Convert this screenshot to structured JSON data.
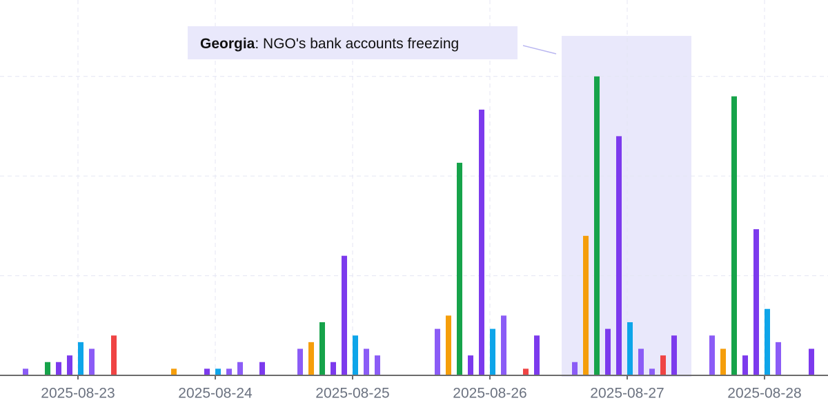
{
  "chart_data": {
    "type": "bar",
    "categories": [
      "2025-08-23",
      "2025-08-24",
      "2025-08-25",
      "2025-08-26",
      "2025-08-27",
      "2025-08-28"
    ],
    "series": [
      {
        "color": "#8b5cf6",
        "values": [
          1,
          null,
          4,
          7,
          2,
          6
        ]
      },
      {
        "color": "#f59e0b",
        "values": [
          null,
          1,
          5,
          9,
          21,
          4
        ]
      },
      {
        "color": "#16a34a",
        "values": [
          2,
          null,
          8,
          32,
          45,
          42
        ]
      },
      {
        "color": "#7c3aed",
        "values": [
          2,
          null,
          2,
          3,
          7,
          3
        ]
      },
      {
        "color": "#7c3aed",
        "values": [
          3,
          1,
          18,
          40,
          36,
          22
        ]
      },
      {
        "color": "#0ea5e9",
        "values": [
          5,
          1,
          6,
          7,
          8,
          10
        ]
      },
      {
        "color": "#8b5cf6",
        "values": [
          4,
          1,
          4,
          9,
          4,
          5
        ]
      },
      {
        "color": "#8b5cf6",
        "values": [
          null,
          2,
          3,
          null,
          1,
          null
        ]
      },
      {
        "color": "#ef4444",
        "values": [
          6,
          null,
          null,
          1,
          3,
          null
        ]
      },
      {
        "color": "#7c3aed",
        "values": [
          null,
          2,
          null,
          6,
          6,
          4
        ]
      }
    ],
    "ylim": [
      0,
      56.5
    ],
    "yticks": [
      0,
      15,
      30,
      45
    ],
    "grid": true,
    "highlight": "2025-08-27",
    "annotation": {
      "label": "Georgia",
      "text": ": NGO's bank accounts freezing"
    }
  }
}
